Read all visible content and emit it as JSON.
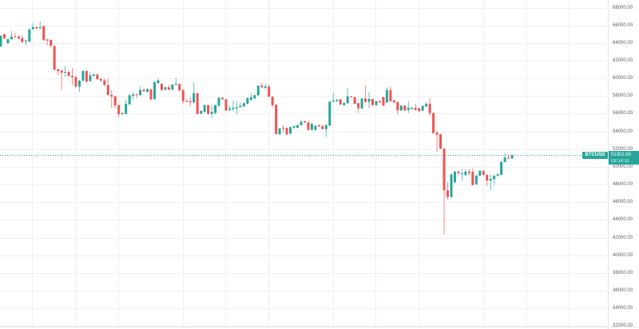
{
  "chart": {
    "symbol": "BTCUSD",
    "last_price": "51302.65",
    "countdown": "03:14:31",
    "colors": {
      "up": "#26a69a",
      "down": "#ef5350",
      "price_line": "#26a69a",
      "label_bg": "#26a69a",
      "grid": "#eff0f3"
    }
  },
  "price_axis": {
    "ticks": [
      "68000.00",
      "66000.00",
      "64000.00",
      "62000.00",
      "60000.00",
      "58000.00",
      "56000.00",
      "54000.00",
      "52000.00",
      "50000.00",
      "48000.00",
      "46000.00",
      "44000.00",
      "42000.00",
      "40000.00",
      "38000.00",
      "36000.00",
      "34000.00",
      "32000.00"
    ]
  },
  "chart_data": {
    "type": "candlestick",
    "symbol": "BTCUSD",
    "title": "",
    "xlabel": "",
    "ylabel": "",
    "ylim": [
      32000,
      68000
    ],
    "y_ticks": [
      68000,
      66000,
      64000,
      62000,
      60000,
      58000,
      56000,
      54000,
      52000,
      50000,
      48000,
      46000,
      44000,
      42000,
      40000,
      38000,
      36000,
      34000,
      32000
    ],
    "grid": true,
    "legend": "none",
    "last_price": 51302.65,
    "last_price_countdown": "03:14:31",
    "fields": [
      "open",
      "high",
      "low",
      "close"
    ],
    "candles": [
      [
        63620,
        64890,
        63530,
        64800
      ],
      [
        64980,
        65070,
        64430,
        64520
      ],
      [
        63980,
        64520,
        63890,
        64430
      ],
      [
        64430,
        65340,
        64340,
        64700
      ],
      [
        64730,
        65160,
        64610,
        64640
      ],
      [
        64700,
        64890,
        64430,
        64500
      ],
      [
        64550,
        64890,
        64050,
        64100
      ],
      [
        64160,
        64430,
        63690,
        64280
      ],
      [
        64160,
        65610,
        64120,
        65550
      ],
      [
        65550,
        66210,
        65520,
        65790
      ],
      [
        65790,
        65910,
        65610,
        65640
      ],
      [
        65670,
        66450,
        65550,
        65790
      ],
      [
        65910,
        65970,
        64250,
        64340
      ],
      [
        64410,
        64430,
        63740,
        64280
      ],
      [
        64340,
        64390,
        63440,
        63690
      ],
      [
        63650,
        63710,
        60920,
        60980
      ],
      [
        61030,
        61090,
        60370,
        60820
      ],
      [
        60890,
        60960,
        58680,
        60640
      ],
      [
        60640,
        61390,
        60130,
        60730
      ],
      [
        60730,
        60910,
        60190,
        60280
      ],
      [
        60280,
        61180,
        59230,
        60130
      ],
      [
        60130,
        60280,
        58930,
        59080
      ],
      [
        59080,
        59830,
        58470,
        59740
      ],
      [
        59740,
        60910,
        59650,
        60820
      ],
      [
        60820,
        60910,
        59560,
        59620
      ],
      [
        59680,
        60730,
        59650,
        60340
      ],
      [
        60280,
        60580,
        60190,
        60430
      ],
      [
        60430,
        60550,
        59830,
        59920
      ],
      [
        59920,
        60010,
        59650,
        59740
      ],
      [
        59770,
        59980,
        59200,
        59230
      ],
      [
        59230,
        59980,
        58070,
        58120
      ],
      [
        58120,
        58660,
        56670,
        57940
      ],
      [
        57960,
        58020,
        56670,
        56940
      ],
      [
        56970,
        57030,
        55680,
        55950
      ],
      [
        55950,
        56130,
        55860,
        56090
      ],
      [
        55980,
        57570,
        55950,
        57120
      ],
      [
        57060,
        58200,
        57030,
        58090
      ],
      [
        58020,
        58470,
        57570,
        58180
      ],
      [
        58180,
        58290,
        57750,
        58090
      ],
      [
        58120,
        59110,
        58020,
        58680
      ],
      [
        58720,
        58830,
        58470,
        58540
      ],
      [
        58470,
        58920,
        58380,
        58770
      ],
      [
        58770,
        58830,
        57570,
        57630
      ],
      [
        57660,
        59650,
        57570,
        59580
      ],
      [
        59470,
        59980,
        59380,
        59770
      ],
      [
        59380,
        59470,
        58610,
        58680
      ],
      [
        58720,
        59080,
        58650,
        58990
      ],
      [
        58990,
        59290,
        58650,
        58720
      ],
      [
        58720,
        59380,
        58650,
        59290
      ],
      [
        59290,
        60070,
        59200,
        59380
      ],
      [
        59380,
        59420,
        58560,
        58630
      ],
      [
        58680,
        58750,
        57120,
        57420
      ],
      [
        57480,
        57570,
        57300,
        57370
      ],
      [
        57420,
        57870,
        56830,
        57280
      ],
      [
        57280,
        59530,
        57120,
        58320
      ],
      [
        58320,
        58380,
        55910,
        55980
      ],
      [
        56010,
        56400,
        55950,
        56310
      ],
      [
        56220,
        57080,
        56130,
        56970
      ],
      [
        56970,
        57030,
        55910,
        55980
      ],
      [
        55980,
        56970,
        55500,
        56220
      ],
      [
        56070,
        57030,
        56000,
        56970
      ],
      [
        56880,
        57890,
        56850,
        57810
      ],
      [
        57810,
        57890,
        57570,
        57630
      ],
      [
        57630,
        57660,
        56310,
        56370
      ],
      [
        56430,
        56880,
        56280,
        56580
      ],
      [
        56520,
        57480,
        56280,
        56670
      ],
      [
        56610,
        57420,
        55920,
        56730
      ],
      [
        56730,
        57280,
        56670,
        56880
      ],
      [
        56820,
        57260,
        56760,
        57190
      ],
      [
        57120,
        57840,
        57080,
        57780
      ],
      [
        57570,
        58320,
        57480,
        57870
      ],
      [
        57720,
        58160,
        57660,
        58090
      ],
      [
        58090,
        59240,
        58020,
        59170
      ],
      [
        59170,
        59470,
        58920,
        58990
      ],
      [
        58920,
        59380,
        58770,
        59080
      ],
      [
        59080,
        59310,
        57890,
        57930
      ],
      [
        57930,
        57980,
        56730,
        56970
      ],
      [
        57030,
        57080,
        53650,
        53720
      ],
      [
        53670,
        54410,
        53600,
        54350
      ],
      [
        54410,
        54710,
        53870,
        54320
      ],
      [
        54410,
        54460,
        53600,
        53670
      ],
      [
        53760,
        54550,
        53690,
        54480
      ],
      [
        54410,
        54680,
        54320,
        54570
      ],
      [
        54410,
        54770,
        54320,
        54710
      ],
      [
        54710,
        55310,
        54640,
        55110
      ],
      [
        55160,
        55220,
        54950,
        55020
      ],
      [
        55020,
        55160,
        54100,
        54170
      ],
      [
        54170,
        54950,
        54100,
        54860
      ],
      [
        54170,
        54770,
        54100,
        54620
      ],
      [
        54710,
        54770,
        54500,
        54570
      ],
      [
        54620,
        54680,
        54190,
        54260
      ],
      [
        54260,
        54820,
        53360,
        54710
      ],
      [
        54660,
        57440,
        54590,
        57370
      ],
      [
        57370,
        58320,
        57300,
        57480
      ],
      [
        57420,
        57660,
        57350,
        57570
      ],
      [
        57630,
        57660,
        56980,
        57060
      ],
      [
        56970,
        57300,
        56890,
        57210
      ],
      [
        57190,
        58920,
        57120,
        57960
      ],
      [
        57960,
        58020,
        57790,
        57870
      ],
      [
        57870,
        57930,
        57080,
        57120
      ],
      [
        57190,
        57260,
        56070,
        56610
      ],
      [
        56610,
        57790,
        56530,
        57720
      ],
      [
        57720,
        59230,
        57260,
        57330
      ],
      [
        57330,
        58470,
        56610,
        57660
      ],
      [
        57660,
        57700,
        56890,
        56970
      ],
      [
        56970,
        57480,
        56890,
        57420
      ],
      [
        57420,
        57480,
        57210,
        57280
      ],
      [
        57870,
        57930,
        56850,
        56910
      ],
      [
        57280,
        58920,
        57210,
        58680
      ],
      [
        58680,
        59080,
        57350,
        57420
      ],
      [
        57510,
        57570,
        57210,
        57280
      ],
      [
        57330,
        57390,
        55920,
        56370
      ],
      [
        56370,
        56980,
        56310,
        56910
      ],
      [
        56910,
        56980,
        56310,
        56370
      ],
      [
        56430,
        57420,
        56070,
        56670
      ],
      [
        56550,
        56760,
        56490,
        56670
      ],
      [
        56670,
        57120,
        56350,
        56430
      ],
      [
        56610,
        56670,
        56220,
        56310
      ],
      [
        56370,
        56940,
        56310,
        56880
      ],
      [
        56820,
        57280,
        56760,
        57120
      ],
      [
        57120,
        57720,
        55770,
        56070
      ],
      [
        56070,
        56130,
        53740,
        53810
      ],
      [
        53870,
        54120,
        51710,
        53630
      ],
      [
        53670,
        53740,
        51980,
        52070
      ],
      [
        52070,
        52110,
        42380,
        47350
      ],
      [
        47350,
        48250,
        46290,
        46590
      ],
      [
        46590,
        49220,
        46520,
        49150
      ],
      [
        48250,
        49540,
        48190,
        49450
      ],
      [
        49450,
        49600,
        49060,
        49290
      ],
      [
        49240,
        49740,
        48390,
        49290
      ],
      [
        49060,
        49740,
        49000,
        49450
      ],
      [
        49450,
        49740,
        49000,
        49290
      ],
      [
        49450,
        49830,
        47870,
        47940
      ],
      [
        48030,
        49090,
        47960,
        49000
      ],
      [
        49000,
        49630,
        48910,
        49540
      ],
      [
        49540,
        49630,
        49000,
        49090
      ],
      [
        49090,
        49180,
        47850,
        48460
      ],
      [
        48460,
        49150,
        47350,
        48640
      ],
      [
        48610,
        49090,
        47940,
        49000
      ],
      [
        49000,
        49290,
        48840,
        49150
      ],
      [
        49090,
        50620,
        49040,
        50560
      ],
      [
        50560,
        51550,
        50490,
        51050
      ],
      [
        51050,
        51460,
        50860,
        50950
      ],
      [
        50950,
        51390,
        50860,
        51302.65
      ]
    ]
  }
}
